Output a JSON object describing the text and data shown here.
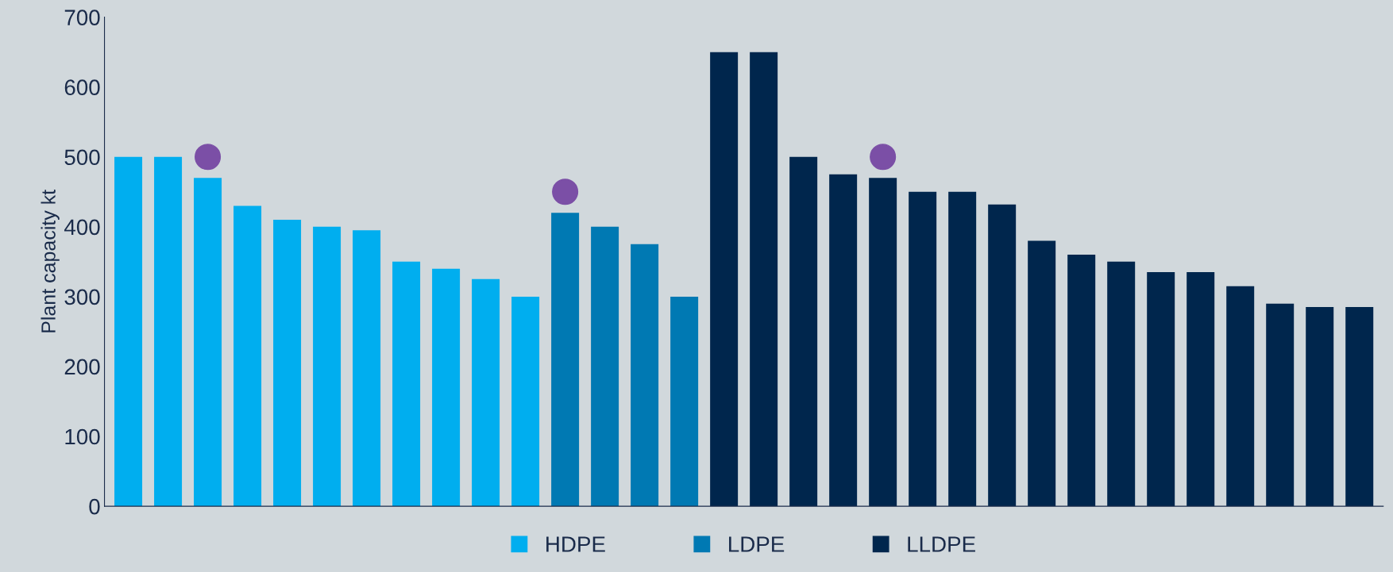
{
  "chart_data": {
    "type": "bar",
    "ylabel": "Plant capacity kt",
    "categories": [
      null,
      null,
      null,
      null,
      null,
      null,
      null,
      null,
      null,
      null,
      null,
      null,
      null,
      null,
      null,
      null,
      null,
      null,
      null,
      null,
      null,
      null,
      null,
      null,
      null,
      null,
      null,
      null,
      null,
      null,
      null,
      null
    ],
    "series": [
      {
        "name": "HDPE",
        "color": "#00aeef",
        "values": [
          500,
          500,
          470,
          430,
          410,
          400,
          395,
          350,
          340,
          325,
          300,
          null,
          null,
          null,
          null,
          null,
          null,
          null,
          null,
          null,
          null,
          null,
          null,
          null,
          null,
          null,
          null,
          null,
          null,
          null,
          null,
          null
        ]
      },
      {
        "name": "LDPE",
        "color": "#0079b3",
        "values": [
          null,
          null,
          null,
          null,
          null,
          null,
          null,
          null,
          null,
          null,
          null,
          420,
          400,
          375,
          300,
          null,
          null,
          null,
          null,
          null,
          null,
          null,
          null,
          null,
          null,
          null,
          null,
          null,
          null,
          null,
          null,
          null
        ]
      },
      {
        "name": "LLDPE",
        "color": "#00264d",
        "values": [
          null,
          null,
          null,
          null,
          null,
          null,
          null,
          null,
          null,
          null,
          null,
          null,
          null,
          null,
          null,
          650,
          650,
          500,
          475,
          470,
          450,
          450,
          432,
          380,
          360,
          350,
          335,
          335,
          315,
          290,
          285,
          285
        ]
      },
      {
        "type": "scatter",
        "color": "#7b4fa6",
        "marker": "circle",
        "values": [
          null,
          null,
          500,
          null,
          null,
          null,
          null,
          null,
          null,
          null,
          null,
          450,
          null,
          null,
          null,
          null,
          null,
          null,
          null,
          500,
          null,
          null,
          null,
          null,
          null,
          null,
          null,
          null,
          null,
          null,
          null,
          null
        ]
      }
    ],
    "ylim": [
      0,
      700
    ],
    "yticks": [
      0,
      100,
      200,
      300,
      400,
      500,
      600,
      700
    ],
    "grid": false,
    "legend": "bottom"
  }
}
